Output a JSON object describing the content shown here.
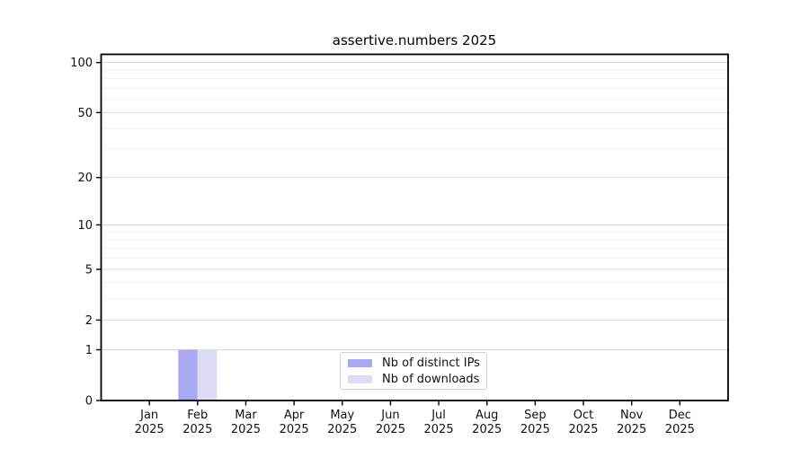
{
  "chart_data": {
    "type": "bar",
    "title": "assertive.numbers 2025",
    "categories": [
      "Jan",
      "Feb",
      "Mar",
      "Apr",
      "May",
      "Jun",
      "Jul",
      "Aug",
      "Sep",
      "Oct",
      "Nov",
      "Dec"
    ],
    "year_label": "2025",
    "series": [
      {
        "name": "Nb of distinct IPs",
        "color": "#a9a9f2",
        "values": [
          0,
          1,
          0,
          0,
          0,
          0,
          0,
          0,
          0,
          0,
          0,
          0
        ]
      },
      {
        "name": "Nb of downloads",
        "color": "#dcdcf9",
        "values": [
          0,
          1,
          0,
          0,
          0,
          0,
          0,
          0,
          0,
          0,
          0,
          0
        ]
      }
    ],
    "yscale": "log1p",
    "ylim": [
      0,
      112
    ],
    "yticks": [
      0,
      1,
      2,
      5,
      10,
      20,
      50,
      100
    ],
    "minor_yticks": [
      3,
      4,
      6,
      7,
      8,
      9,
      30,
      40,
      60,
      70,
      80,
      90
    ],
    "grid": true,
    "legend_position": "lower center",
    "bar_width_fraction": 0.4,
    "colors": {
      "major_grid": "#d8d8d8",
      "minor_grid": "#f0f0f0",
      "axis": "#000000",
      "text": "#111111",
      "background": "#ffffff"
    }
  }
}
